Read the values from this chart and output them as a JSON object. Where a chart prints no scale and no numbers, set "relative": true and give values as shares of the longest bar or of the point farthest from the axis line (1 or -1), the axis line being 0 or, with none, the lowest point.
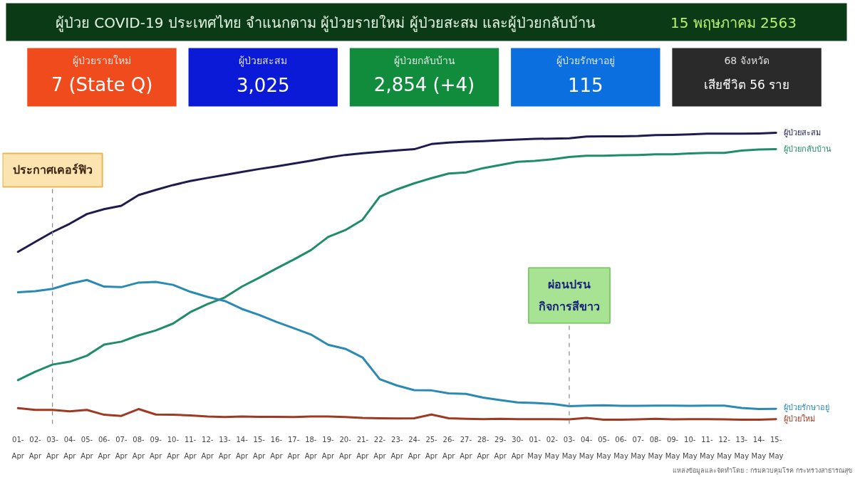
{
  "chart_data": [
    {
      "type": "other",
      "title": "ผู้ป่วย COVID-19 ประเทศไทย จำแนกตาม ผู้ป่วยรายใหม่ ผู้ป่วยสะสม และผู้ป่วยกลับบ้าน",
      "subtitle": "15 พฤษภาคม 2563",
      "annotations": [
        "ผู้ป่วยรายใหม่",
        "7 (State Q)",
        "ผู้ป่วยสะสม",
        "3,025",
        "ผู้ป่วยกลับบ้าน",
        "2,854 (+4)",
        "ผู้ป่วยรักษาอยู่",
        "115",
        "68 จังหวัด",
        "เสียชีวิต 56 ราย"
      ],
      "colors": [
        "#f04b1c",
        "#0b1ad6",
        "#118c3c",
        "#0b6fe0",
        "#2a2a2a"
      ]
    },
    {
      "type": "line",
      "relative": true,
      "grid": false,
      "line_style": "solid",
      "categories": [
        "01-\nApr",
        "02-\nApr",
        "03-\nApr",
        "04-\nApr",
        "05-\nApr",
        "06-\nApr",
        "07-\nApr",
        "08-\nApr",
        "09-\nApr",
        "10-\nApr",
        "11-\nApr",
        "12-\nApr",
        "13-\nApr",
        "14-\nApr",
        "15-\nApr",
        "16-\nApr",
        "17-\nApr",
        "18-\nApr",
        "19-\nApr",
        "20-\nApr",
        "21-\nApr",
        "22-\nApr",
        "23-\nApr",
        "24-\nApr",
        "25-\nApr",
        "26-\nApr",
        "27-\nApr",
        "28-\nApr",
        "29-\nApr",
        "30-\nApr",
        "01-\nMay",
        "02-\nMay",
        "03-\nMay",
        "04-\nMay",
        "05-\nMay",
        "06-\nMay",
        "07-\nMay",
        "08-\nMay",
        "09-\nMay",
        "10-\nMay",
        "11-\nMay",
        "12-\nMay",
        "13-\nMay",
        "14-\nMay",
        "15-\nMay"
      ],
      "series": [
        {
          "name": "ผู้ป่วยสะสม",
          "color": "#1e1b4f",
          "values": [
            0.585,
            0.62,
            0.654,
            0.683,
            0.717,
            0.734,
            0.746,
            0.783,
            0.801,
            0.818,
            0.832,
            0.843,
            0.853,
            0.864,
            0.874,
            0.883,
            0.893,
            0.903,
            0.914,
            0.923,
            0.929,
            0.934,
            0.939,
            0.943,
            0.961,
            0.966,
            0.969,
            0.971,
            0.974,
            0.977,
            0.979,
            0.98,
            0.981,
            0.987,
            0.988,
            0.988,
            0.989,
            0.992,
            0.993,
            0.995,
            0.997,
            0.997,
            0.997,
            0.998,
            1.0
          ]
        },
        {
          "name": "ผู้ป่วยกลับบ้าน",
          "color": "#1f8c6b",
          "values": [
            0.138,
            0.167,
            0.192,
            0.202,
            0.223,
            0.262,
            0.272,
            0.294,
            0.311,
            0.335,
            0.375,
            0.403,
            0.426,
            0.464,
            0.495,
            0.527,
            0.558,
            0.591,
            0.637,
            0.661,
            0.697,
            0.778,
            0.803,
            0.824,
            0.842,
            0.858,
            0.862,
            0.877,
            0.888,
            0.899,
            0.902,
            0.908,
            0.916,
            0.92,
            0.92,
            0.922,
            0.923,
            0.925,
            0.925,
            0.928,
            0.93,
            0.93,
            0.938,
            0.942,
            0.943
          ]
        },
        {
          "name": "ผู้ป่วยรักษาอยู่",
          "color": "#2a8ab4",
          "values": [
            0.444,
            0.448,
            0.456,
            0.474,
            0.487,
            0.464,
            0.462,
            0.478,
            0.48,
            0.47,
            0.446,
            0.428,
            0.414,
            0.386,
            0.365,
            0.341,
            0.319,
            0.297,
            0.261,
            0.247,
            0.217,
            0.141,
            0.119,
            0.103,
            0.102,
            0.092,
            0.09,
            0.077,
            0.068,
            0.06,
            0.058,
            0.055,
            0.047,
            0.049,
            0.05,
            0.048,
            0.048,
            0.049,
            0.049,
            0.048,
            0.049,
            0.049,
            0.041,
            0.037,
            0.038
          ]
        },
        {
          "name": "ผู้ป่วยใหม่",
          "color": "#9e3a22",
          "values": [
            0.04,
            0.034,
            0.034,
            0.029,
            0.034,
            0.017,
            0.013,
            0.037,
            0.018,
            0.017,
            0.015,
            0.011,
            0.009,
            0.011,
            0.01,
            0.01,
            0.009,
            0.011,
            0.011,
            0.009,
            0.006,
            0.005,
            0.004,
            0.005,
            0.018,
            0.005,
            0.003,
            0.002,
            0.003,
            0.002,
            0.002,
            0.002,
            0.001,
            0.006,
            0.0,
            0.0,
            0.001,
            0.003,
            0.001,
            0.002,
            0.002,
            0.001,
            0.0,
            0.0,
            0.002
          ]
        }
      ],
      "ref_lines": [
        {
          "axis": "x",
          "value": "03-\nApr",
          "label": "ประกาศเคอร์ฟิว",
          "color": "#8a8a8a",
          "line_style": "dashed"
        },
        {
          "axis": "x",
          "value": "03-\nMay",
          "label": "ผ่อนปรน\nกิจการสีขาว",
          "color": "#8a8a8a",
          "line_style": "dashed"
        }
      ],
      "annotations": [
        "แหล่งข้อมูลและจัดทำโดย : กรมควบคุมโรค กระทรวงสาธารณสุข"
      ]
    }
  ]
}
